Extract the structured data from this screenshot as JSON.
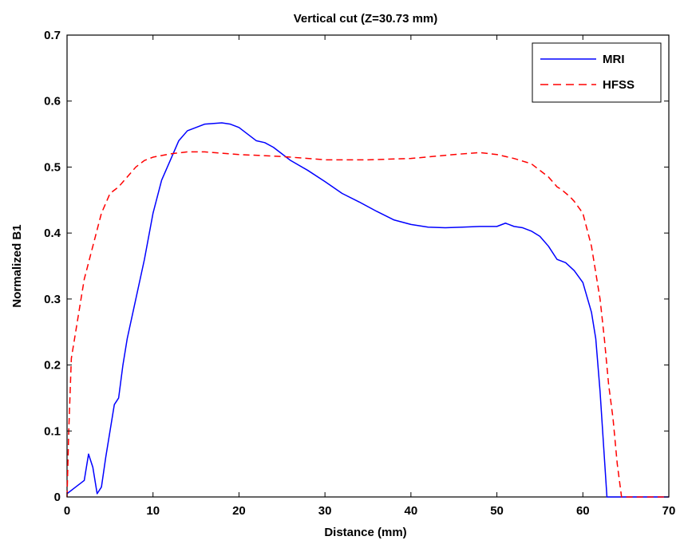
{
  "chart_data": {
    "type": "line",
    "title": "Vertical cut (Z=30.73 mm)",
    "xlabel": "Distance (mm)",
    "ylabel": "Normalized B1",
    "xlim": [
      0,
      70
    ],
    "ylim": [
      0,
      0.7
    ],
    "xticks": [
      0,
      10,
      20,
      30,
      40,
      50,
      60,
      70
    ],
    "yticks": [
      0,
      0.1,
      0.2,
      0.3,
      0.4,
      0.5,
      0.6,
      0.7
    ],
    "xtick_labels": [
      "0",
      "10",
      "20",
      "30",
      "40",
      "50",
      "60",
      "70"
    ],
    "ytick_labels": [
      "0",
      "0.1",
      "0.2",
      "0.3",
      "0.4",
      "0.5",
      "0.6",
      "0.7"
    ],
    "grid": false,
    "legend_position": "top-right",
    "series": [
      {
        "name": "MRI",
        "color": "#0000ff",
        "style": "solid",
        "points": [
          [
            0,
            0.005
          ],
          [
            1.0,
            0.015
          ],
          [
            2.0,
            0.025
          ],
          [
            2.5,
            0.065
          ],
          [
            3.0,
            0.045
          ],
          [
            3.5,
            0.005
          ],
          [
            4.0,
            0.015
          ],
          [
            4.5,
            0.06
          ],
          [
            5.0,
            0.1
          ],
          [
            5.5,
            0.14
          ],
          [
            6.0,
            0.15
          ],
          [
            6.5,
            0.2
          ],
          [
            7.0,
            0.24
          ],
          [
            8.0,
            0.3
          ],
          [
            9.0,
            0.36
          ],
          [
            10.0,
            0.43
          ],
          [
            11.0,
            0.48
          ],
          [
            12.0,
            0.51
          ],
          [
            13.0,
            0.54
          ],
          [
            14.0,
            0.555
          ],
          [
            15.0,
            0.56
          ],
          [
            16.0,
            0.565
          ],
          [
            18.0,
            0.567
          ],
          [
            19.0,
            0.565
          ],
          [
            20.0,
            0.56
          ],
          [
            21.0,
            0.55
          ],
          [
            22.0,
            0.54
          ],
          [
            23.0,
            0.537
          ],
          [
            24.0,
            0.53
          ],
          [
            25.0,
            0.52
          ],
          [
            26.0,
            0.51
          ],
          [
            28.0,
            0.495
          ],
          [
            30.0,
            0.478
          ],
          [
            32.0,
            0.46
          ],
          [
            34.0,
            0.447
          ],
          [
            36.0,
            0.433
          ],
          [
            38.0,
            0.42
          ],
          [
            40.0,
            0.413
          ],
          [
            42.0,
            0.409
          ],
          [
            44.0,
            0.408
          ],
          [
            46.0,
            0.409
          ],
          [
            48.0,
            0.41
          ],
          [
            50.0,
            0.41
          ],
          [
            51.0,
            0.415
          ],
          [
            52.0,
            0.41
          ],
          [
            53.0,
            0.408
          ],
          [
            54.0,
            0.403
          ],
          [
            55.0,
            0.395
          ],
          [
            56.0,
            0.38
          ],
          [
            57.0,
            0.36
          ],
          [
            58.0,
            0.355
          ],
          [
            59.0,
            0.343
          ],
          [
            60.0,
            0.325
          ],
          [
            61.0,
            0.28
          ],
          [
            61.5,
            0.24
          ],
          [
            62.0,
            0.16
          ],
          [
            62.5,
            0.06
          ],
          [
            62.8,
            0.0
          ],
          [
            70.0,
            0.0
          ]
        ]
      },
      {
        "name": "HFSS",
        "color": "#ff0000",
        "style": "dashed",
        "points": [
          [
            0,
            0.0
          ],
          [
            0.2,
            0.1
          ],
          [
            0.5,
            0.21
          ],
          [
            1.0,
            0.25
          ],
          [
            1.5,
            0.29
          ],
          [
            2.0,
            0.33
          ],
          [
            3.0,
            0.38
          ],
          [
            4.0,
            0.43
          ],
          [
            5.0,
            0.46
          ],
          [
            6.0,
            0.47
          ],
          [
            7.0,
            0.485
          ],
          [
            8.0,
            0.5
          ],
          [
            9.0,
            0.51
          ],
          [
            10.0,
            0.515
          ],
          [
            12.0,
            0.52
          ],
          [
            14.0,
            0.523
          ],
          [
            16.0,
            0.523
          ],
          [
            18.0,
            0.521
          ],
          [
            20.0,
            0.519
          ],
          [
            25.0,
            0.516
          ],
          [
            30.0,
            0.511
          ],
          [
            35.0,
            0.511
          ],
          [
            40.0,
            0.513
          ],
          [
            45.0,
            0.519
          ],
          [
            48.0,
            0.522
          ],
          [
            50.0,
            0.519
          ],
          [
            52.0,
            0.513
          ],
          [
            54.0,
            0.505
          ],
          [
            56.0,
            0.485
          ],
          [
            57.0,
            0.47
          ],
          [
            57.5,
            0.466
          ],
          [
            58.5,
            0.455
          ],
          [
            59.0,
            0.448
          ],
          [
            60.0,
            0.43
          ],
          [
            61.0,
            0.38
          ],
          [
            62.0,
            0.3
          ],
          [
            62.5,
            0.24
          ],
          [
            63.0,
            0.17
          ],
          [
            63.5,
            0.12
          ],
          [
            64.0,
            0.05
          ],
          [
            64.5,
            0.0
          ],
          [
            70.0,
            0.0
          ]
        ]
      }
    ]
  }
}
